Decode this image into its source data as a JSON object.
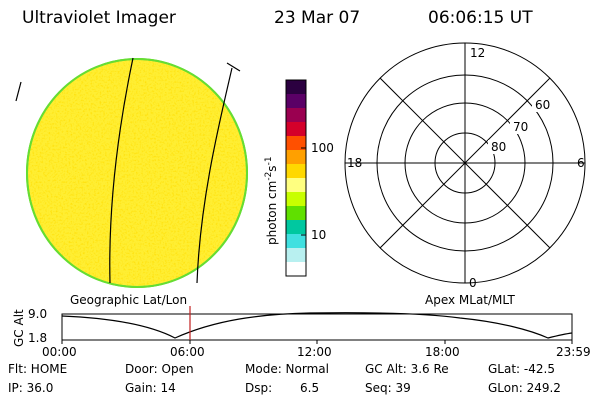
{
  "header": {
    "instrument": "Ultraviolet Imager",
    "date": "23 Mar 07",
    "time": "06:06:15 UT"
  },
  "image_panel": {
    "label": "Geographic Lat/Lon"
  },
  "colorbar": {
    "unit_main": "photon cm",
    "unit_sup1": "-2",
    "unit_mid": "s",
    "unit_sup2": "-1",
    "tick_100": "100",
    "tick_10": "10",
    "colors": [
      "#2b0040",
      "#5a0066",
      "#9a0050",
      "#d4002a",
      "#ff5000",
      "#ffa000",
      "#ffd800",
      "#ffff80",
      "#c8ff00",
      "#60e000",
      "#00c8a0",
      "#40e0e0",
      "#b8f0f0",
      "#ffffff"
    ]
  },
  "polar_panel": {
    "label": "Apex MLat/MLT",
    "mlt_top": "12",
    "mlt_left": "18",
    "mlt_right": "6",
    "mlt_bottom": "0",
    "lat_60": "60",
    "lat_70": "70",
    "lat_80": "80"
  },
  "altitude_plot": {
    "axis_label": "GC Alt",
    "y_max": "9.0",
    "y_min": "1.8",
    "x_ticks": [
      "00:00",
      "06:00",
      "12:00",
      "18:00",
      "23:59"
    ]
  },
  "status": {
    "flt": "Flt: HOME",
    "ip": "IP: 36.0",
    "door": "Door: Open",
    "gain": "Gain: 14",
    "mode": "Mode: Normal",
    "dsp_label": "Dsp:",
    "dsp_value": "6.5",
    "gc_alt": "GC Alt: 3.6 Re",
    "seq": "Seq: 39",
    "glat": "GLat: -42.5",
    "glon": "GLon: 249.2"
  }
}
